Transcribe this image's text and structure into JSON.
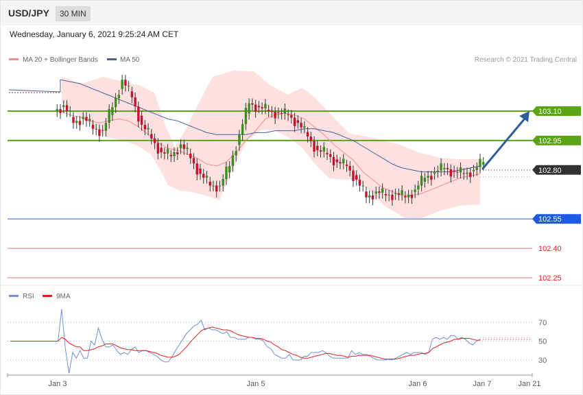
{
  "header": {
    "pair": "USD/JPY",
    "timeframe": "30 MIN",
    "datetime": "Wednesday, January 6, 2021 9:25:24 AM CET"
  },
  "legend": {
    "ma20": "MA 20 + Bollinger Bands",
    "ma50": "MA 50",
    "credit": "Research © 2021 Trading Central",
    "rsi": "RSI",
    "ma9": "9MA"
  },
  "colors": {
    "bollinger_fill": "#fde0e0",
    "ma20": "#f08c8c",
    "ma50": "#4a5f9a",
    "bull": "#3a8e1f",
    "bear": "#c8102e",
    "resistance": "#5aa514",
    "support": "#1e5ae6",
    "weak": "#f06e6e",
    "current": "#333333",
    "arrow": "#2e5d9c",
    "rsi": "#6d8fd8",
    "rsi_ma": "#e81b1b"
  },
  "chart_data": [
    {
      "type": "line",
      "title": "USD/JPY 30 MIN",
      "subtitle": "",
      "xlabel": "",
      "ylabel": "",
      "x_ticks": [
        "Jan 3",
        "Jan 5",
        "Jan 6",
        "Jan 7",
        "Jan 21"
      ],
      "ylim": [
        102.18,
        103.38
      ],
      "series": [
        {
          "name": "Price (close)",
          "values": [
            103.13,
            103.04,
            103.07,
            103.01,
            103.0,
            103.12,
            103.26,
            103.17,
            103.03,
            102.96,
            102.89,
            102.87,
            102.93,
            102.86,
            102.78,
            102.72,
            102.72,
            102.82,
            102.98,
            103.14,
            103.12,
            103.1,
            103.09,
            103.08,
            103.04,
            102.97,
            102.9,
            102.88,
            102.84,
            102.82,
            102.75,
            102.66,
            102.69,
            102.67,
            102.68,
            102.66,
            102.7,
            102.76,
            102.79,
            102.81,
            102.79,
            102.78,
            102.8,
            102.84
          ]
        },
        {
          "name": "MA 20",
          "values": [
            103.1,
            103.08,
            103.07,
            103.05,
            103.04,
            103.05,
            103.06,
            103.05,
            103.02,
            102.98,
            102.94,
            102.91,
            102.9,
            102.88,
            102.86,
            102.83,
            102.82,
            102.84,
            102.89,
            102.95,
            103.0,
            103.06,
            103.08,
            103.09,
            103.08,
            103.06,
            103.02,
            102.98,
            102.93,
            102.89,
            102.85,
            102.79,
            102.75,
            102.71,
            102.69,
            102.67,
            102.67,
            102.68,
            102.7,
            102.72,
            102.74,
            102.76,
            102.77,
            102.78
          ]
        },
        {
          "name": "MA 50",
          "values": [
            103.26,
            103.25,
            103.24,
            103.22,
            103.2,
            103.18,
            103.16,
            103.14,
            103.12,
            103.1,
            103.08,
            103.06,
            103.05,
            103.03,
            103.01,
            102.99,
            102.98,
            102.98,
            102.98,
            102.98,
            102.99,
            102.99,
            103.0,
            103.0,
            103.0,
            103.01,
            103.01,
            103.0,
            102.99,
            102.97,
            102.95,
            102.92,
            102.89,
            102.86,
            102.83,
            102.81,
            102.8,
            102.79,
            102.79,
            102.79,
            102.79,
            102.8,
            102.81,
            102.82
          ]
        }
      ],
      "levels": [
        {
          "label": "103.10",
          "value": 103.1,
          "kind": "resistance"
        },
        {
          "label": "102.95",
          "value": 102.95,
          "kind": "resistance"
        },
        {
          "label": "102.80",
          "value": 102.8,
          "kind": "current"
        },
        {
          "label": "102.55",
          "value": 102.55,
          "kind": "support"
        },
        {
          "label": "102.40",
          "value": 102.4,
          "kind": "weak"
        },
        {
          "label": "102.25",
          "value": 102.25,
          "kind": "weak"
        }
      ]
    },
    {
      "type": "line",
      "title": "RSI",
      "subtitle": "",
      "xlabel": "",
      "ylabel": "",
      "y_ticks": [
        "70",
        "50",
        "30"
      ],
      "ylim": [
        10,
        85
      ],
      "grid": true,
      "series": [
        {
          "name": "RSI",
          "values": [
            50,
            50,
            50,
            50,
            50,
            50,
            50,
            50,
            50,
            50,
            50,
            50,
            50,
            50,
            84,
            42,
            16,
            38,
            32,
            40,
            32,
            32,
            50,
            46,
            64,
            52,
            44,
            44,
            46,
            40,
            36,
            38,
            36,
            41,
            44,
            38,
            40,
            40,
            38,
            36,
            34,
            30,
            28,
            28,
            33,
            40,
            46,
            52,
            58,
            62,
            66,
            68,
            72,
            62,
            64,
            62,
            62,
            60,
            58,
            60,
            54,
            54,
            52,
            52,
            52,
            54,
            54,
            52,
            52,
            50,
            44,
            42,
            36,
            34,
            32,
            32,
            36,
            30,
            30,
            30,
            34,
            34,
            38,
            38,
            38,
            40,
            38,
            34,
            32,
            32,
            32,
            32,
            32,
            40,
            36,
            38,
            36,
            36,
            34,
            32,
            30,
            30,
            30,
            31,
            30,
            32,
            34,
            36,
            38,
            36,
            38,
            38,
            38,
            36,
            38,
            52,
            54,
            52,
            54,
            52,
            56,
            56,
            52,
            54,
            52,
            48,
            46,
            50,
            52
          ]
        },
        {
          "name": "9MA",
          "values": [
            50,
            50,
            50,
            50,
            50,
            50,
            50,
            50,
            50,
            50,
            50,
            50,
            50,
            50,
            54,
            52,
            48,
            46,
            44,
            44,
            40,
            40,
            41,
            42,
            44,
            45,
            47,
            47,
            47,
            45,
            43,
            42,
            41,
            41,
            40,
            40,
            40,
            40,
            39,
            38,
            37,
            35,
            34,
            33,
            33,
            34,
            36,
            40,
            44,
            49,
            53,
            57,
            61,
            63,
            64,
            65,
            64,
            63,
            62,
            62,
            61,
            59,
            57,
            56,
            55,
            54,
            54,
            53,
            53,
            52,
            50,
            49,
            46,
            44,
            41,
            40,
            38,
            36,
            35,
            33,
            32,
            32,
            33,
            34,
            35,
            36,
            37,
            37,
            36,
            35,
            35,
            34,
            33,
            34,
            34,
            35,
            35,
            35,
            35,
            34,
            33,
            32,
            31,
            31,
            31,
            31,
            32,
            33,
            34,
            35,
            35,
            36,
            37,
            37,
            38,
            42,
            44,
            46,
            48,
            49,
            50,
            52,
            52,
            53,
            53,
            53,
            52,
            51,
            51
          ]
        }
      ]
    }
  ]
}
